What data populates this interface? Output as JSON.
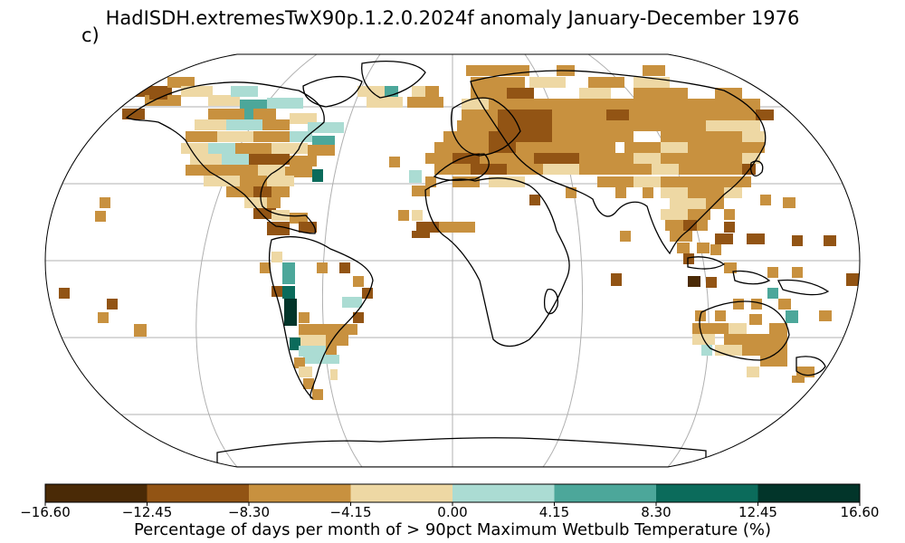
{
  "title": "HadISDH.extremesTwX90p.1.2.0.2024f anomaly January-December 1976",
  "panel_label": "c)",
  "colorbar": {
    "label": "Percentage of days per month of > 90pct Maximum Wetbulb Temperature (%)",
    "ticks": [
      "−16.60",
      "−12.45",
      "−8.30",
      "−4.15",
      "0.00",
      "4.15",
      "8.30",
      "12.45",
      "16.60"
    ],
    "colors": [
      "#4a2a06",
      "#925414",
      "#c8913f",
      "#eed8a4",
      "#abdcd3",
      "#4ca79a",
      "#0b6b5b",
      "#02352a"
    ]
  },
  "map": {
    "projection": "Robinson",
    "gridlines": true,
    "coastlines": true
  }
}
